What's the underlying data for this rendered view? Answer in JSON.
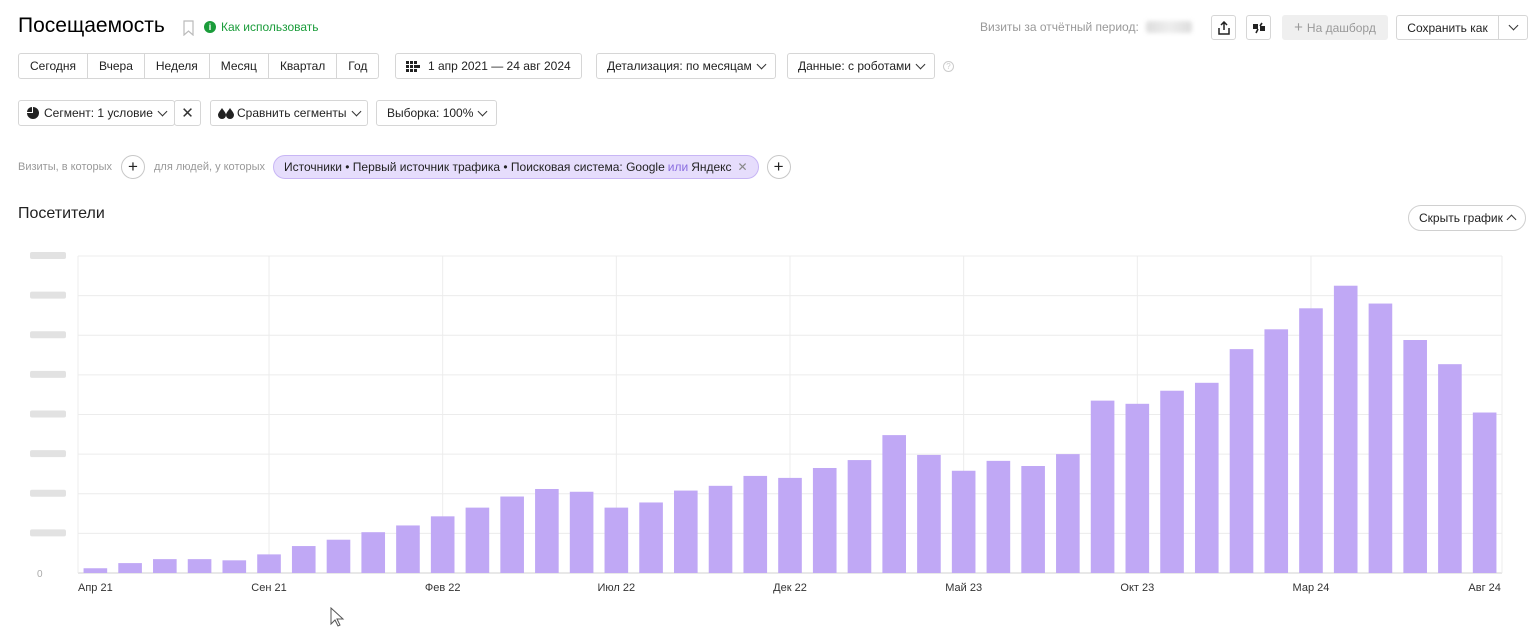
{
  "header": {
    "title": "Посещаемость",
    "howto": "Как использовать",
    "visits_label": "Визиты за отчётный период:",
    "dashboard_btn": "На дашборд",
    "save_btn": "Сохранить как"
  },
  "periods": [
    "Сегодня",
    "Вчера",
    "Неделя",
    "Месяц",
    "Квартал",
    "Год"
  ],
  "date_range": "1 апр 2021 — 24 авг 2024",
  "detail": "Детализация: по месяцам",
  "data_mode": "Данные: с роботами",
  "segment": "Сегмент: 1 условие",
  "compare": "Сравнить сегменты",
  "sample": "Выборка: 100%",
  "filter": {
    "visits_in_which": "Визиты, в которых",
    "people_who": "для людей, у которых",
    "chip_main": "Источники • Первый источник трафика • Поисковая система: Google",
    "chip_or": "или",
    "chip_end": "Яндекс"
  },
  "section_title": "Посетители",
  "hide_chart": "Скрыть график",
  "colors": {
    "bar": "#c0a8f5",
    "accent_green": "#1a9c3a",
    "chip_bg": "#e6ddfc"
  },
  "chart_data": {
    "type": "bar",
    "ylim": [
      0,
      8
    ],
    "grid": true,
    "x_tick_labels": [
      "Апр 21",
      "Сен 21",
      "Фев 22",
      "Июл 22",
      "Дек 22",
      "Май 23",
      "Окт 23",
      "Мар 24",
      "Авг 24"
    ],
    "categories": [
      "Апр 21",
      "Май 21",
      "Июн 21",
      "Июл 21",
      "Авг 21",
      "Сен 21",
      "Окт 21",
      "Ноя 21",
      "Дек 21",
      "Янв 22",
      "Фев 22",
      "Мар 22",
      "Апр 22",
      "Май 22",
      "Июн 22",
      "Июл 22",
      "Авг 22",
      "Сен 22",
      "Окт 22",
      "Ноя 22",
      "Дек 22",
      "Янв 23",
      "Фев 23",
      "Мар 23",
      "Апр 23",
      "Май 23",
      "Июн 23",
      "Июл 23",
      "Авг 23",
      "Сен 23",
      "Окт 23",
      "Ноя 23",
      "Дек 23",
      "Янв 24",
      "Фев 24",
      "Мар 24",
      "Апр 24",
      "Май 24",
      "Июн 24",
      "Июл 24",
      "Авг 24"
    ],
    "series": [
      {
        "values": [
          0.12,
          0.25,
          0.35,
          0.35,
          0.32,
          0.47,
          0.68,
          0.84,
          1.03,
          1.2,
          1.43,
          1.65,
          1.93,
          2.12,
          2.05,
          1.65,
          1.78,
          2.08,
          2.2,
          2.45,
          2.4,
          2.65,
          2.85,
          3.48,
          2.98,
          2.58,
          2.83,
          2.7,
          3.0,
          4.35,
          4.27,
          4.6,
          4.8,
          5.65,
          6.15,
          6.68,
          7.25,
          6.8,
          5.88,
          5.27,
          4.05
        ]
      }
    ]
  }
}
